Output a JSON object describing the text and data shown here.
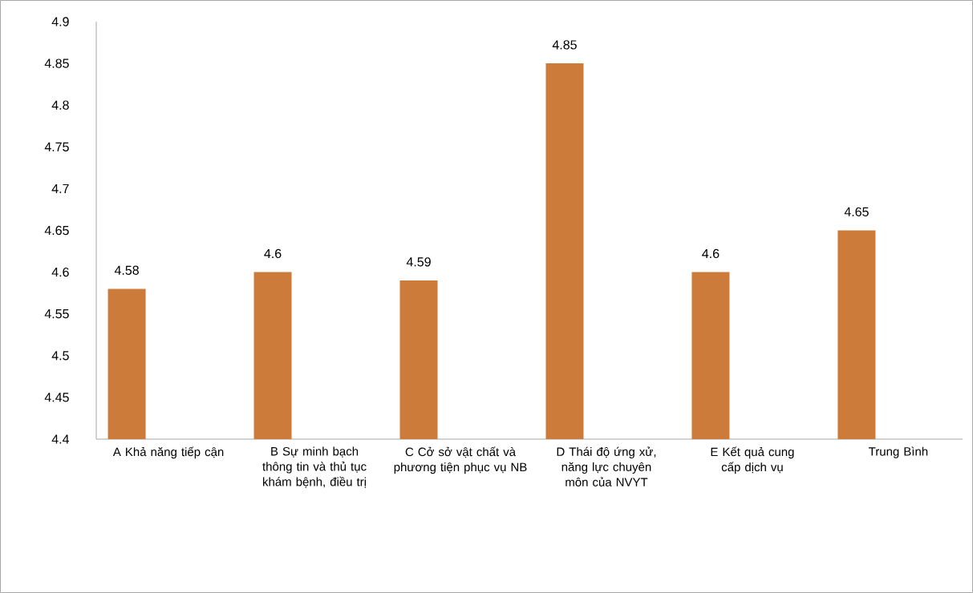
{
  "chart_data": {
    "type": "bar",
    "categories": [
      "A Khả năng tiếp cận",
      "B Sự minh bạch thông tin và thủ tục khám bệnh, điều trị",
      "C Cở sở vật chất và phương tiện phục vụ NB",
      "D Thái độ ứng xử, năng lực chuyên môn của NVYT",
      "E Kết quả cung cấp dịch vụ",
      "Trung Bình"
    ],
    "values": [
      4.58,
      4.6,
      4.59,
      4.85,
      4.6,
      4.65
    ],
    "color": "#cd7b3a",
    "ylim": [
      4.4,
      4.9
    ],
    "yticks": [
      4.4,
      4.45,
      4.5,
      4.55,
      4.6,
      4.65,
      4.7,
      4.75,
      4.8,
      4.85,
      4.9
    ],
    "data_labels": true,
    "grid": false
  }
}
